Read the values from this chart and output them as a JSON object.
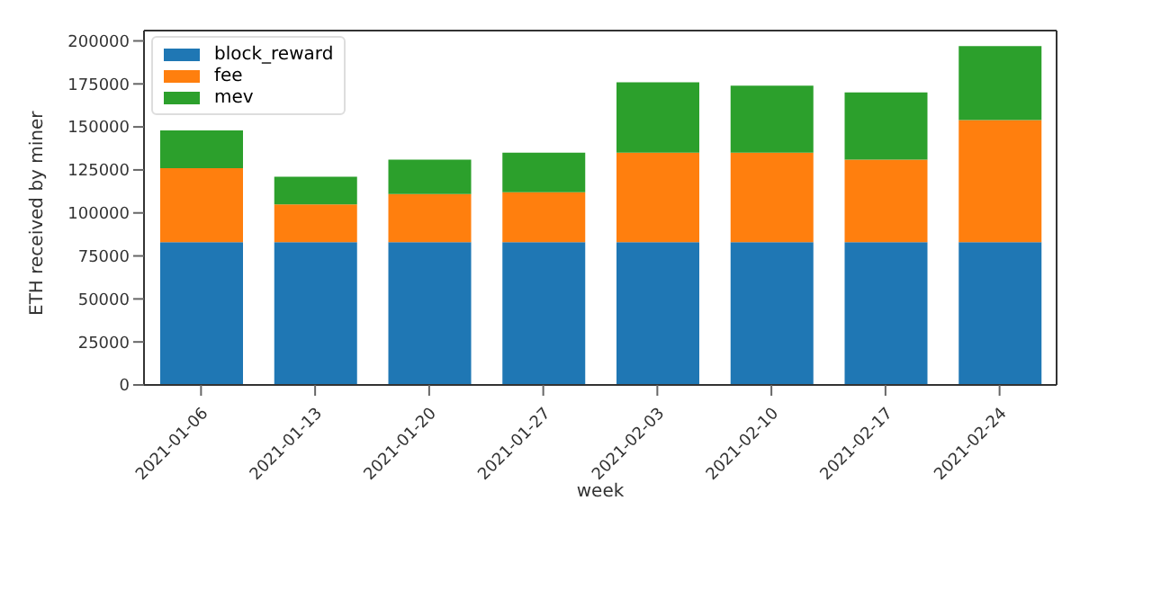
{
  "chart_data": {
    "type": "bar",
    "stacked": true,
    "xlabel": "week",
    "ylabel": "ETH received by miner",
    "categories": [
      "2021-01-06",
      "2021-01-13",
      "2021-01-20",
      "2021-01-27",
      "2021-02-03",
      "2021-02-10",
      "2021-02-17",
      "2021-02-24"
    ],
    "series": [
      {
        "name": "block_reward",
        "color": "#1f77b4",
        "values": [
          83000,
          83000,
          83000,
          83000,
          83000,
          83000,
          83000,
          83000
        ]
      },
      {
        "name": "fee",
        "color": "#ff7f0e",
        "values": [
          43000,
          22000,
          28000,
          29000,
          52000,
          52000,
          48000,
          71000
        ]
      },
      {
        "name": "mev",
        "color": "#2ca02c",
        "values": [
          22000,
          16000,
          20000,
          23000,
          41000,
          39000,
          39000,
          43000
        ]
      }
    ],
    "ylim": [
      0,
      206000
    ],
    "yticks": [
      0,
      25000,
      50000,
      75000,
      100000,
      125000,
      150000,
      175000,
      200000
    ],
    "legend": "top left"
  }
}
